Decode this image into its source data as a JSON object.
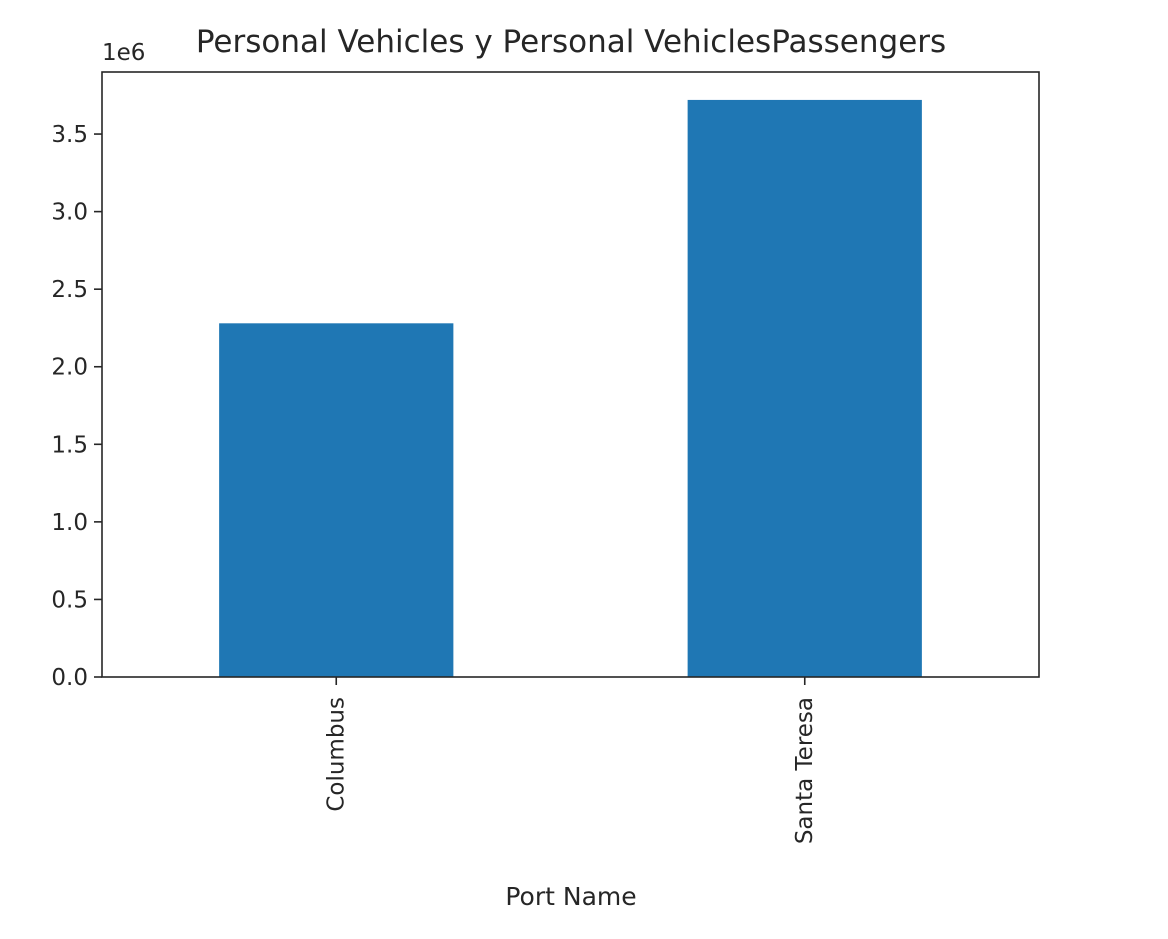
{
  "chart_data": {
    "type": "bar",
    "title": "Personal Vehicles y Personal VehiclesPassengers",
    "xlabel": "Port Name",
    "ylabel": "",
    "y_offset_label": "1e6",
    "categories": [
      "Columbus",
      "Santa Teresa"
    ],
    "values": [
      2280000,
      3720000
    ],
    "ylim": [
      0,
      3900000
    ],
    "yticks": [
      0,
      500000,
      1000000,
      1500000,
      2000000,
      2500000,
      3000000,
      3500000
    ],
    "ytick_labels": [
      "0.0",
      "0.5",
      "1.0",
      "1.5",
      "2.0",
      "2.5",
      "3.0",
      "3.5"
    ],
    "grid": false,
    "legend": "none",
    "colors": {
      "bar": "#1f77b4",
      "axis": "#262626",
      "background": "#ffffff"
    }
  }
}
